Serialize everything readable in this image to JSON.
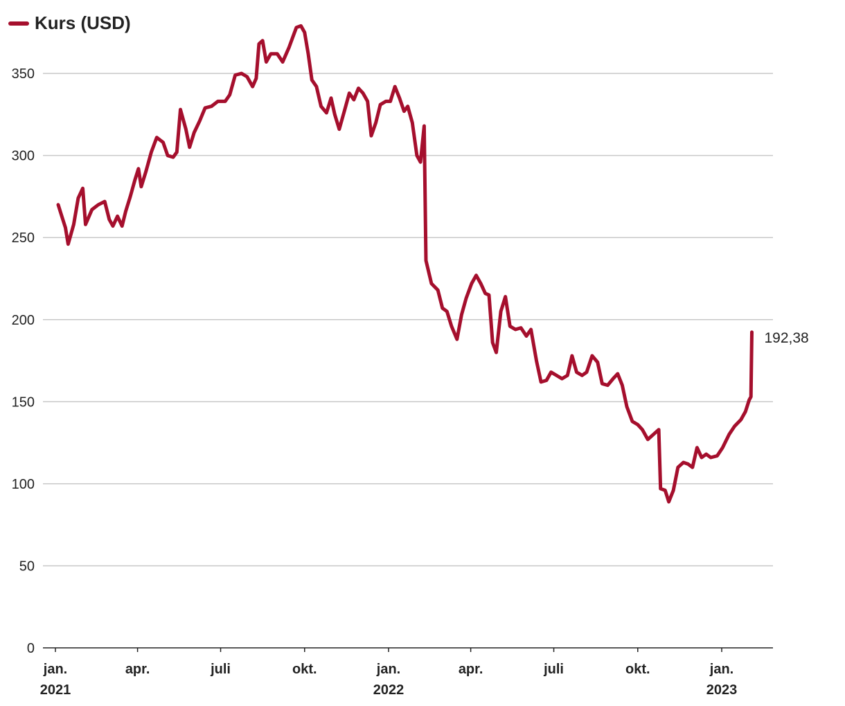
{
  "chart_data": {
    "type": "line",
    "title": "",
    "xlabel": "",
    "ylabel": "",
    "ylim": [
      0,
      380
    ],
    "yticks": [
      0,
      50,
      100,
      150,
      200,
      250,
      300,
      350
    ],
    "grid": "horizontal",
    "legend_position": "top-left",
    "xtick_labels": [
      {
        "month": "jan.",
        "year": "2021",
        "date": "2021-01-01"
      },
      {
        "month": "apr.",
        "year": "",
        "date": "2021-04-01"
      },
      {
        "month": "juli",
        "year": "",
        "date": "2021-07-01"
      },
      {
        "month": "okt.",
        "year": "",
        "date": "2021-10-01"
      },
      {
        "month": "jan.",
        "year": "2022",
        "date": "2022-01-01"
      },
      {
        "month": "apr.",
        "year": "",
        "date": "2022-04-01"
      },
      {
        "month": "juli",
        "year": "",
        "date": "2022-07-01"
      },
      {
        "month": "okt.",
        "year": "",
        "date": "2022-10-01"
      },
      {
        "month": "jan.",
        "year": "2023",
        "date": "2023-01-01"
      }
    ],
    "series": [
      {
        "name": "Kurs (USD)",
        "color": "#a50f2d",
        "end_label": "192,38",
        "points": [
          [
            "2021-01-04",
            270
          ],
          [
            "2021-01-08",
            263
          ],
          [
            "2021-01-12",
            256
          ],
          [
            "2021-01-15",
            246
          ],
          [
            "2021-01-21",
            258
          ],
          [
            "2021-01-26",
            274
          ],
          [
            "2021-01-31",
            280
          ],
          [
            "2021-02-03",
            258
          ],
          [
            "2021-02-10",
            267
          ],
          [
            "2021-02-17",
            270
          ],
          [
            "2021-02-24",
            272
          ],
          [
            "2021-03-01",
            261
          ],
          [
            "2021-03-05",
            257
          ],
          [
            "2021-03-10",
            263
          ],
          [
            "2021-03-15",
            257
          ],
          [
            "2021-03-19",
            266
          ],
          [
            "2021-03-24",
            275
          ],
          [
            "2021-03-29",
            285
          ],
          [
            "2021-04-02",
            292
          ],
          [
            "2021-04-05",
            281
          ],
          [
            "2021-04-10",
            290
          ],
          [
            "2021-04-16",
            302
          ],
          [
            "2021-04-22",
            311
          ],
          [
            "2021-04-29",
            308
          ],
          [
            "2021-05-04",
            300
          ],
          [
            "2021-05-10",
            299
          ],
          [
            "2021-05-14",
            302
          ],
          [
            "2021-05-18",
            328
          ],
          [
            "2021-05-24",
            316
          ],
          [
            "2021-05-28",
            305
          ],
          [
            "2021-06-02",
            314
          ],
          [
            "2021-06-08",
            321
          ],
          [
            "2021-06-14",
            329
          ],
          [
            "2021-06-21",
            330
          ],
          [
            "2021-06-28",
            333
          ],
          [
            "2021-07-06",
            333
          ],
          [
            "2021-07-11",
            337
          ],
          [
            "2021-07-17",
            349
          ],
          [
            "2021-07-24",
            350
          ],
          [
            "2021-07-30",
            348
          ],
          [
            "2021-08-05",
            342
          ],
          [
            "2021-08-09",
            347
          ],
          [
            "2021-08-12",
            368
          ],
          [
            "2021-08-16",
            370
          ],
          [
            "2021-08-20",
            357
          ],
          [
            "2021-08-25",
            362
          ],
          [
            "2021-09-01",
            362
          ],
          [
            "2021-09-07",
            357
          ],
          [
            "2021-09-14",
            366
          ],
          [
            "2021-09-18",
            372
          ],
          [
            "2021-09-22",
            378
          ],
          [
            "2021-09-27",
            379
          ],
          [
            "2021-10-01",
            375
          ],
          [
            "2021-10-05",
            362
          ],
          [
            "2021-10-09",
            346
          ],
          [
            "2021-10-14",
            342
          ],
          [
            "2021-10-19",
            330
          ],
          [
            "2021-10-25",
            326
          ],
          [
            "2021-10-30",
            335
          ],
          [
            "2021-11-03",
            325
          ],
          [
            "2021-11-08",
            316
          ],
          [
            "2021-11-14",
            328
          ],
          [
            "2021-11-19",
            338
          ],
          [
            "2021-11-24",
            334
          ],
          [
            "2021-11-29",
            341
          ],
          [
            "2021-12-04",
            338
          ],
          [
            "2021-12-09",
            333
          ],
          [
            "2021-12-13",
            312
          ],
          [
            "2021-12-18",
            320
          ],
          [
            "2021-12-23",
            331
          ],
          [
            "2021-12-29",
            333
          ],
          [
            "2022-01-03",
            333
          ],
          [
            "2022-01-08",
            342
          ],
          [
            "2022-01-13",
            335
          ],
          [
            "2022-01-18",
            327
          ],
          [
            "2022-01-22",
            330
          ],
          [
            "2022-01-27",
            320
          ],
          [
            "2022-02-01",
            300
          ],
          [
            "2022-02-05",
            296
          ],
          [
            "2022-02-09",
            318
          ],
          [
            "2022-02-11",
            236
          ],
          [
            "2022-02-17",
            222
          ],
          [
            "2022-02-24",
            218
          ],
          [
            "2022-03-01",
            207
          ],
          [
            "2022-03-06",
            205
          ],
          [
            "2022-03-11",
            196
          ],
          [
            "2022-03-17",
            188
          ],
          [
            "2022-03-22",
            203
          ],
          [
            "2022-03-27",
            213
          ],
          [
            "2022-04-02",
            222
          ],
          [
            "2022-04-07",
            227
          ],
          [
            "2022-04-12",
            222
          ],
          [
            "2022-04-17",
            216
          ],
          [
            "2022-04-21",
            215
          ],
          [
            "2022-04-25",
            186
          ],
          [
            "2022-04-29",
            180
          ],
          [
            "2022-05-04",
            205
          ],
          [
            "2022-05-09",
            214
          ],
          [
            "2022-05-14",
            196
          ],
          [
            "2022-05-20",
            194
          ],
          [
            "2022-05-26",
            195
          ],
          [
            "2022-06-01",
            190
          ],
          [
            "2022-06-06",
            194
          ],
          [
            "2022-06-12",
            175
          ],
          [
            "2022-06-17",
            162
          ],
          [
            "2022-06-23",
            163
          ],
          [
            "2022-06-28",
            168
          ],
          [
            "2022-07-04",
            166
          ],
          [
            "2022-07-10",
            164
          ],
          [
            "2022-07-16",
            166
          ],
          [
            "2022-07-21",
            178
          ],
          [
            "2022-07-26",
            168
          ],
          [
            "2022-08-01",
            166
          ],
          [
            "2022-08-06",
            168
          ],
          [
            "2022-08-12",
            178
          ],
          [
            "2022-08-18",
            174
          ],
          [
            "2022-08-23",
            161
          ],
          [
            "2022-08-29",
            160
          ],
          [
            "2022-09-04",
            164
          ],
          [
            "2022-09-09",
            167
          ],
          [
            "2022-09-14",
            160
          ],
          [
            "2022-09-19",
            147
          ],
          [
            "2022-09-25",
            138
          ],
          [
            "2022-10-01",
            136
          ],
          [
            "2022-10-06",
            133
          ],
          [
            "2022-10-12",
            127
          ],
          [
            "2022-10-18",
            130
          ],
          [
            "2022-10-24",
            133
          ],
          [
            "2022-10-26",
            97
          ],
          [
            "2022-10-31",
            96
          ],
          [
            "2022-11-04",
            89
          ],
          [
            "2022-11-09",
            96
          ],
          [
            "2022-11-14",
            110
          ],
          [
            "2022-11-20",
            113
          ],
          [
            "2022-11-25",
            112
          ],
          [
            "2022-11-30",
            110
          ],
          [
            "2022-12-05",
            122
          ],
          [
            "2022-12-10",
            116
          ],
          [
            "2022-12-15",
            118
          ],
          [
            "2022-12-20",
            116
          ],
          [
            "2022-12-27",
            117
          ],
          [
            "2023-01-02",
            122
          ],
          [
            "2023-01-09",
            130
          ],
          [
            "2023-01-15",
            135
          ],
          [
            "2023-01-22",
            139
          ],
          [
            "2023-01-27",
            144
          ],
          [
            "2023-01-31",
            151
          ],
          [
            "2023-02-02",
            153
          ],
          [
            "2023-02-03",
            192.38
          ]
        ]
      }
    ]
  }
}
